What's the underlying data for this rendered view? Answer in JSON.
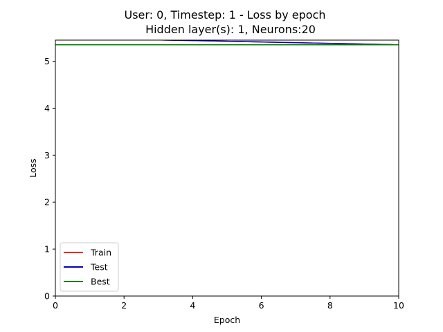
{
  "chart_data": {
    "type": "line",
    "title_lines": [
      "User: 0, Timestep: 1 - Loss by epoch",
      "Hidden layer(s): 1, Neurons:20"
    ],
    "xlabel": "Epoch",
    "ylabel": "Loss",
    "xlim": [
      0,
      10
    ],
    "ylim": [
      0,
      5.45
    ],
    "xticks": [
      0,
      2,
      4,
      6,
      8,
      10
    ],
    "yticks": [
      0,
      1,
      2,
      3,
      4,
      5
    ],
    "grid": false,
    "legend_position": "lower-left",
    "series": [
      {
        "name": "Train",
        "color": "#ff0000",
        "x": [
          0,
          10
        ],
        "y": [
          5.5,
          5.35
        ]
      },
      {
        "name": "Test",
        "color": "#0000bf",
        "x": [
          0,
          10
        ],
        "y": [
          5.5,
          5.35
        ]
      },
      {
        "name": "Best",
        "color": "#008000",
        "x": [
          0,
          10
        ],
        "y": [
          5.35,
          5.35
        ]
      }
    ]
  }
}
